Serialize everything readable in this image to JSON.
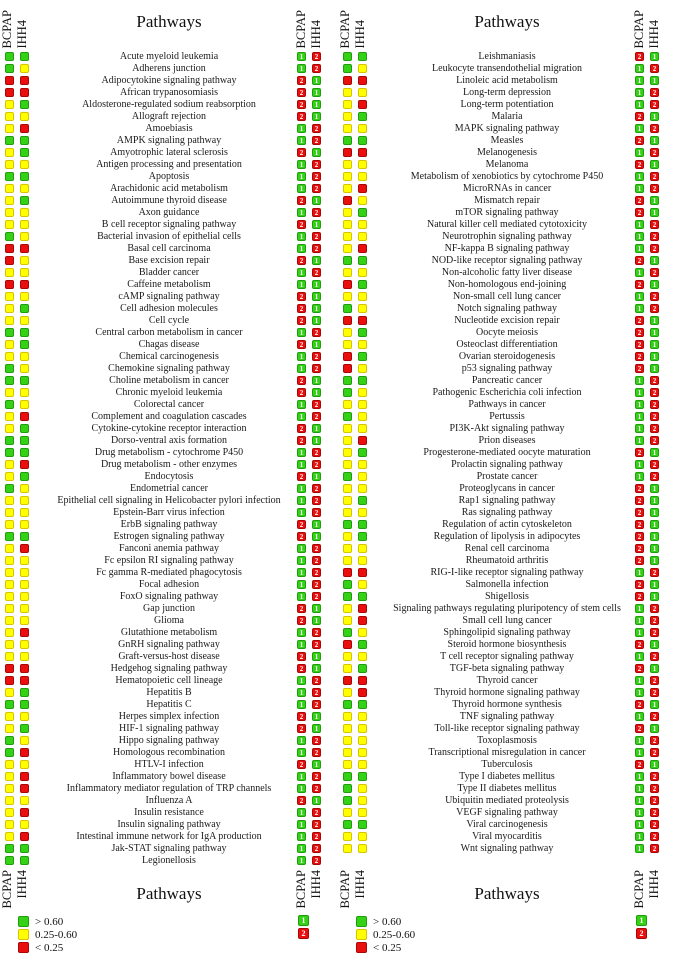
{
  "figure": {
    "title": "Pathways",
    "col_bcpap": "BCPAP",
    "col_ihh4": "IHH4"
  },
  "legend": {
    "ratio": [
      {
        "key": "G",
        "color": "#35d117",
        "label": "> 0.60"
      },
      {
        "key": "Y",
        "color": "#ffff00",
        "label": "0.25-0.60"
      },
      {
        "key": "R",
        "color": "#ea0f0f",
        "label": "< 0.25"
      }
    ],
    "rank": [
      {
        "key": "1",
        "color": "#35d117",
        "label": "1"
      },
      {
        "key": "2",
        "color": "#ea0f0f",
        "label": "2"
      }
    ]
  },
  "chart_data": {
    "type": "heatmap",
    "title": "Pathways",
    "cell_lines": [
      "BCPAP",
      "IHH4"
    ],
    "ratio_scale": {
      "G": "> 0.60",
      "Y": "0.25-0.60",
      "R": "< 0.25"
    },
    "rank_scale": {
      "1": "green",
      "2": "red"
    },
    "row_format": [
      "pathway",
      "BCPAP_ratio",
      "IHH4_ratio",
      "BCPAP_rank",
      "IHH4_rank"
    ],
    "panels": [
      {
        "rows": [
          [
            "Acute myeloid leukemia",
            "G",
            "G",
            "1",
            "2"
          ],
          [
            "Adherens junction",
            "G",
            "Y",
            "1",
            "2"
          ],
          [
            "Adipocytokine signaling pathway",
            "R",
            "R",
            "2",
            "1"
          ],
          [
            "African trypanosomiasis",
            "R",
            "R",
            "2",
            "1"
          ],
          [
            "Aldosterone-regulated sodium reabsorption",
            "Y",
            "G",
            "2",
            "1"
          ],
          [
            "Allograft rejection",
            "Y",
            "Y",
            "2",
            "1"
          ],
          [
            "Amoebiasis",
            "Y",
            "R",
            "1",
            "2"
          ],
          [
            "AMPK signaling pathway",
            "G",
            "G",
            "1",
            "2"
          ],
          [
            "Amyotrophic lateral sclerosis",
            "Y",
            "G",
            "2",
            "1"
          ],
          [
            "Antigen processing and presentation",
            "Y",
            "Y",
            "1",
            "2"
          ],
          [
            "Apoptosis",
            "G",
            "G",
            "1",
            "2"
          ],
          [
            "Arachidonic acid metabolism",
            "Y",
            "Y",
            "1",
            "2"
          ],
          [
            "Autoimmune thyroid disease",
            "Y",
            "G",
            "2",
            "1"
          ],
          [
            "Axon guidance",
            "Y",
            "Y",
            "1",
            "2"
          ],
          [
            "B cell receptor signaling pathway",
            "Y",
            "Y",
            "2",
            "1"
          ],
          [
            "Bacterial invasion of epithelial cells",
            "G",
            "Y",
            "1",
            "2"
          ],
          [
            "Basal cell carcinoma",
            "R",
            "R",
            "1",
            "2"
          ],
          [
            "Base excision repair",
            "R",
            "Y",
            "2",
            "1"
          ],
          [
            "Bladder cancer",
            "Y",
            "Y",
            "1",
            "2"
          ],
          [
            "Caffeine metabolism",
            "R",
            "R",
            "1",
            "1"
          ],
          [
            "cAMP signaling pathway",
            "Y",
            "Y",
            "2",
            "1"
          ],
          [
            "Cell adhesion molecules",
            "Y",
            "G",
            "2",
            "1"
          ],
          [
            "Cell cycle",
            "Y",
            "Y",
            "2",
            "1"
          ],
          [
            "Central carbon metabolism in cancer",
            "G",
            "G",
            "1",
            "2"
          ],
          [
            "Chagas disease",
            "Y",
            "G",
            "2",
            "1"
          ],
          [
            "Chemical carcinogenesis",
            "Y",
            "Y",
            "1",
            "2"
          ],
          [
            "Chemokine signaling pathway",
            "G",
            "Y",
            "1",
            "2"
          ],
          [
            "Choline metabolism in cancer",
            "G",
            "G",
            "2",
            "1"
          ],
          [
            "Chronic myeloid leukemia",
            "Y",
            "Y",
            "2",
            "1"
          ],
          [
            "Colorectal cancer",
            "G",
            "Y",
            "1",
            "2"
          ],
          [
            "Complement and coagulation cascades",
            "Y",
            "R",
            "1",
            "2"
          ],
          [
            "Cytokine-cytokine receptor interaction",
            "Y",
            "G",
            "2",
            "1"
          ],
          [
            "Dorso-ventral axis formation",
            "G",
            "G",
            "2",
            "1"
          ],
          [
            "Drug metabolism - cytochrome P450",
            "G",
            "G",
            "1",
            "2"
          ],
          [
            "Drug metabolism - other enzymes",
            "Y",
            "R",
            "1",
            "2"
          ],
          [
            "Endocytosis",
            "Y",
            "G",
            "2",
            "1"
          ],
          [
            "Endometrial cancer",
            "G",
            "Y",
            "1",
            "2"
          ],
          [
            "Epithelial cell signaling in Helicobacter pylori infection",
            "Y",
            "Y",
            "1",
            "2"
          ],
          [
            "Epstein-Barr virus infection",
            "Y",
            "Y",
            "1",
            "2"
          ],
          [
            "ErbB signaling pathway",
            "Y",
            "Y",
            "2",
            "1"
          ],
          [
            "Estrogen signaling pathway",
            "G",
            "G",
            "2",
            "1"
          ],
          [
            "Fanconi anemia pathway",
            "Y",
            "R",
            "1",
            "2"
          ],
          [
            "Fc epsilon RI signaling pathway",
            "Y",
            "Y",
            "1",
            "2"
          ],
          [
            "Fc gamma R-mediated phagocytosis",
            "Y",
            "Y",
            "1",
            "2"
          ],
          [
            "Focal adhesion",
            "Y",
            "Y",
            "1",
            "2"
          ],
          [
            "FoxO signaling pathway",
            "Y",
            "Y",
            "1",
            "2"
          ],
          [
            "Gap junction",
            "Y",
            "Y",
            "2",
            "1"
          ],
          [
            "Glioma",
            "Y",
            "Y",
            "2",
            "1"
          ],
          [
            "Glutathione metabolism",
            "Y",
            "R",
            "1",
            "2"
          ],
          [
            "GnRH signaling pathway",
            "Y",
            "Y",
            "1",
            "2"
          ],
          [
            "Graft-versus-host disease",
            "Y",
            "Y",
            "2",
            "1"
          ],
          [
            "Hedgehog signaling pathway",
            "R",
            "R",
            "2",
            "1"
          ],
          [
            "Hematopoietic cell lineage",
            "R",
            "R",
            "1",
            "2"
          ],
          [
            "Hepatitis B",
            "Y",
            "G",
            "1",
            "2"
          ],
          [
            "Hepatitis C",
            "G",
            "G",
            "1",
            "2"
          ],
          [
            "Herpes simplex infection",
            "Y",
            "Y",
            "2",
            "1"
          ],
          [
            "HIF-1 signaling pathway",
            "Y",
            "G",
            "2",
            "1"
          ],
          [
            "Hippo signaling pathway",
            "G",
            "Y",
            "1",
            "2"
          ],
          [
            "Homologous recombination",
            "G",
            "R",
            "1",
            "2"
          ],
          [
            "HTLV-I infection",
            "Y",
            "Y",
            "2",
            "1"
          ],
          [
            "Inflammatory bowel disease",
            "Y",
            "R",
            "1",
            "2"
          ],
          [
            "Inflammatory mediator regulation of TRP channels",
            "Y",
            "R",
            "1",
            "2"
          ],
          [
            "Influenza A",
            "Y",
            "Y",
            "2",
            "1"
          ],
          [
            "Insulin resistance",
            "Y",
            "R",
            "1",
            "2"
          ],
          [
            "Insulin signaling pathway",
            "Y",
            "Y",
            "1",
            "2"
          ],
          [
            "Intestinal immune network for IgA production",
            "Y",
            "R",
            "1",
            "2"
          ],
          [
            "Jak-STAT signaling pathway",
            "G",
            "G",
            "1",
            "2"
          ],
          [
            "Legionellosis",
            "G",
            "G",
            "1",
            "2"
          ]
        ]
      },
      {
        "rows": [
          [
            "Leishmaniasis",
            "G",
            "G",
            "2",
            "1"
          ],
          [
            "Leukocyte transendothelial migration",
            "G",
            "Y",
            "1",
            "2"
          ],
          [
            "Linoleic acid metabolism",
            "R",
            "R",
            "1",
            "1"
          ],
          [
            "Long-term depression",
            "Y",
            "Y",
            "1",
            "2"
          ],
          [
            "Long-term potentiation",
            "Y",
            "R",
            "1",
            "2"
          ],
          [
            "Malaria",
            "Y",
            "G",
            "2",
            "1"
          ],
          [
            "MAPK signaling pathway",
            "Y",
            "Y",
            "1",
            "2"
          ],
          [
            "Measles",
            "G",
            "G",
            "2",
            "1"
          ],
          [
            "Melanogenesis",
            "R",
            "R",
            "1",
            "2"
          ],
          [
            "Melanoma",
            "Y",
            "Y",
            "2",
            "1"
          ],
          [
            "Metabolism of xenobiotics by cytochrome P450",
            "Y",
            "Y",
            "1",
            "2"
          ],
          [
            "MicroRNAs in cancer",
            "Y",
            "R",
            "1",
            "2"
          ],
          [
            "Mismatch repair",
            "R",
            "Y",
            "2",
            "1"
          ],
          [
            "mTOR signaling pathway",
            "Y",
            "G",
            "2",
            "1"
          ],
          [
            "Natural killer cell mediated cytotoxicity",
            "Y",
            "Y",
            "1",
            "2"
          ],
          [
            "Neurotrophin signaling pathway",
            "Y",
            "Y",
            "1",
            "2"
          ],
          [
            "NF-kappa B signaling pathway",
            "Y",
            "R",
            "1",
            "2"
          ],
          [
            "NOD-like receptor signaling pathway",
            "G",
            "G",
            "2",
            "1"
          ],
          [
            "Non-alcoholic fatty liver disease",
            "Y",
            "Y",
            "1",
            "2"
          ],
          [
            "Non-homologous end-joining",
            "R",
            "G",
            "2",
            "1"
          ],
          [
            "Non-small cell lung cancer",
            "Y",
            "Y",
            "1",
            "2"
          ],
          [
            "Notch signaling pathway",
            "G",
            "Y",
            "1",
            "2"
          ],
          [
            "Nucleotide excision repair",
            "R",
            "R",
            "2",
            "1"
          ],
          [
            "Oocyte meiosis",
            "Y",
            "G",
            "2",
            "1"
          ],
          [
            "Osteoclast differentiation",
            "Y",
            "Y",
            "2",
            "1"
          ],
          [
            "Ovarian steroidogenesis",
            "R",
            "G",
            "2",
            "1"
          ],
          [
            "p53 signaling pathway",
            "R",
            "Y",
            "2",
            "1"
          ],
          [
            "Pancreatic cancer",
            "G",
            "G",
            "1",
            "2"
          ],
          [
            "Pathogenic Escherichia coli infection",
            "G",
            "Y",
            "1",
            "2"
          ],
          [
            "Pathways in cancer",
            "Y",
            "Y",
            "1",
            "2"
          ],
          [
            "Pertussis",
            "G",
            "Y",
            "1",
            "2"
          ],
          [
            "PI3K-Akt signaling pathway",
            "Y",
            "Y",
            "1",
            "2"
          ],
          [
            "Prion diseases",
            "Y",
            "R",
            "1",
            "2"
          ],
          [
            "Progesterone-mediated oocyte maturation",
            "Y",
            "G",
            "2",
            "1"
          ],
          [
            "Prolactin signaling pathway",
            "Y",
            "Y",
            "1",
            "2"
          ],
          [
            "Prostate cancer",
            "G",
            "Y",
            "1",
            "2"
          ],
          [
            "Proteoglycans in cancer",
            "Y",
            "Y",
            "2",
            "1"
          ],
          [
            "Rap1 signaling pathway",
            "Y",
            "G",
            "2",
            "1"
          ],
          [
            "Ras signaling pathway",
            "Y",
            "Y",
            "2",
            "1"
          ],
          [
            "Regulation of actin cytoskeleton",
            "G",
            "G",
            "2",
            "1"
          ],
          [
            "Regulation of lipolysis in adipocytes",
            "Y",
            "G",
            "2",
            "1"
          ],
          [
            "Renal cell carcinoma",
            "Y",
            "Y",
            "2",
            "1"
          ],
          [
            "Rheumatoid arthritis",
            "Y",
            "Y",
            "2",
            "1"
          ],
          [
            "RIG-I-like receptor signaling pathway",
            "R",
            "R",
            "1",
            "2"
          ],
          [
            "Salmonella infection",
            "G",
            "Y",
            "2",
            "1"
          ],
          [
            "Shigellosis",
            "G",
            "G",
            "2",
            "1"
          ],
          [
            "Signaling pathways regulating pluripotency of stem cells",
            "Y",
            "R",
            "1",
            "2"
          ],
          [
            "Small cell lung cancer",
            "Y",
            "R",
            "1",
            "2"
          ],
          [
            "Sphingolipid signaling pathway",
            "G",
            "Y",
            "1",
            "2"
          ],
          [
            "Steroid hormone biosynthesis",
            "R",
            "G",
            "2",
            "1"
          ],
          [
            "T cell receptor signaling pathway",
            "Y",
            "Y",
            "1",
            "2"
          ],
          [
            "TGF-beta signaling pathway",
            "Y",
            "G",
            "2",
            "1"
          ],
          [
            "Thyroid cancer",
            "R",
            "R",
            "1",
            "2"
          ],
          [
            "Thyroid hormone signaling pathway",
            "Y",
            "R",
            "1",
            "2"
          ],
          [
            "Thyroid hormone synthesis",
            "G",
            "G",
            "2",
            "1"
          ],
          [
            "TNF signaling pathway",
            "Y",
            "Y",
            "1",
            "2"
          ],
          [
            "Toll-like receptor signaling pathway",
            "Y",
            "Y",
            "2",
            "1"
          ],
          [
            "Toxoplasmosis",
            "Y",
            "Y",
            "1",
            "2"
          ],
          [
            "Transcriptional misregulation in cancer",
            "Y",
            "Y",
            "1",
            "2"
          ],
          [
            "Tuberculosis",
            "Y",
            "Y",
            "2",
            "1"
          ],
          [
            "Type I diabetes mellitus",
            "G",
            "G",
            "1",
            "2"
          ],
          [
            "Type II diabetes mellitus",
            "G",
            "Y",
            "1",
            "2"
          ],
          [
            "Ubiquitin mediated proteolysis",
            "G",
            "Y",
            "1",
            "2"
          ],
          [
            "VEGF signaling pathway",
            "Y",
            "Y",
            "1",
            "2"
          ],
          [
            "Viral carcinogenesis",
            "G",
            "G",
            "1",
            "2"
          ],
          [
            "Viral myocarditis",
            "Y",
            "Y",
            "1",
            "2"
          ],
          [
            "Wnt signaling pathway",
            "Y",
            "Y",
            "1",
            "2"
          ]
        ]
      }
    ]
  }
}
